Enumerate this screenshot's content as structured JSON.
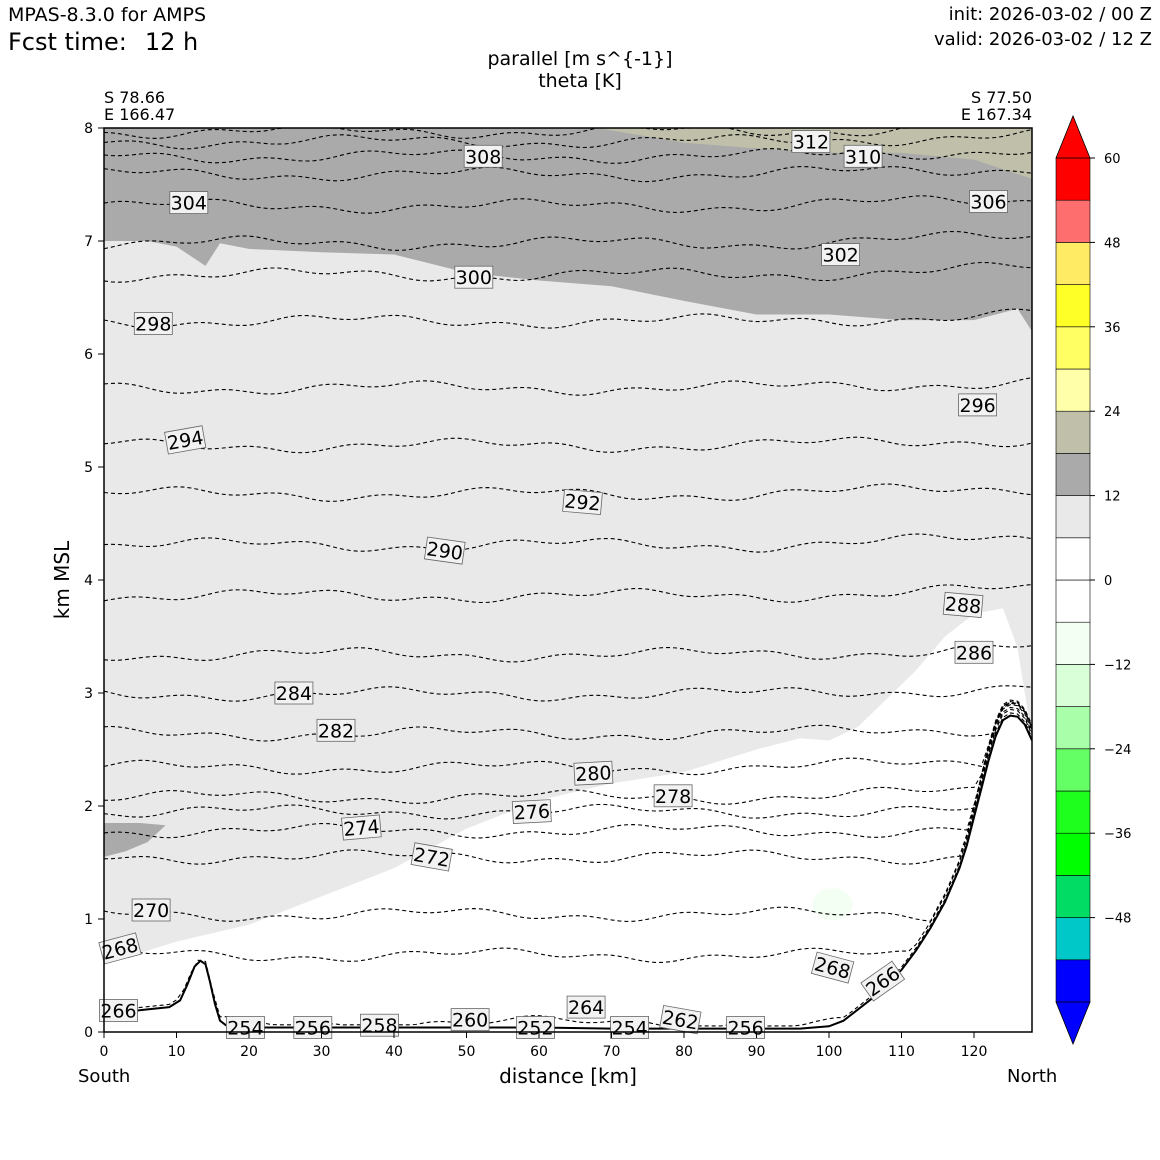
{
  "header": {
    "model": "MPAS-8.3.0 for AMPS",
    "fcst_label": "Fcst time:",
    "fcst_value": "12 h",
    "init": "init: 2026-03-02 / 00 Z",
    "valid": "valid: 2026-03-02 / 12 Z"
  },
  "endpoints": {
    "left_lat": "S 78.66",
    "left_lon": "E 166.47",
    "right_lat": "S 77.50",
    "right_lon": "E 167.34"
  },
  "directions": {
    "left": "South",
    "right": "North"
  },
  "colors": {
    "contour": "#000000",
    "terrain_line": "#000000",
    "fill_band_light": "#e9e9e9",
    "fill_band_mid": "#aaaaaa",
    "fill_band_tan": "#bfbfaa",
    "fill_neg_pale": "#f3fff3"
  },
  "chart_data": {
    "type": "cross-section",
    "title": "parallel [m s^{-1}]",
    "subtitle": "theta [K]",
    "xlabel": "distance [km]",
    "ylabel": "km MSL",
    "xlim": [
      0,
      128
    ],
    "ylim": [
      0,
      8
    ],
    "xticks": [
      0,
      10,
      20,
      30,
      40,
      50,
      60,
      70,
      80,
      90,
      100,
      110,
      120
    ],
    "yticks": [
      0,
      1,
      2,
      3,
      4,
      5,
      6,
      7,
      8
    ],
    "terrain": {
      "x": [
        0,
        3,
        6,
        9,
        10.5,
        11.5,
        12.5,
        13.3,
        14,
        14.6,
        15.3,
        16,
        17,
        18,
        20,
        30,
        40,
        50,
        60,
        70,
        80,
        90,
        96,
        100,
        102,
        104,
        106,
        108,
        110,
        112,
        114,
        116,
        118,
        119,
        120,
        121,
        122,
        123,
        124,
        125,
        126,
        127,
        128
      ],
      "y": [
        0.15,
        0.18,
        0.2,
        0.22,
        0.28,
        0.42,
        0.58,
        0.63,
        0.6,
        0.45,
        0.25,
        0.1,
        0.05,
        0.04,
        0.04,
        0.04,
        0.04,
        0.04,
        0.04,
        0.03,
        0.03,
        0.03,
        0.03,
        0.05,
        0.1,
        0.2,
        0.3,
        0.42,
        0.55,
        0.72,
        0.92,
        1.15,
        1.45,
        1.65,
        1.9,
        2.15,
        2.4,
        2.62,
        2.76,
        2.8,
        2.79,
        2.72,
        2.58
      ]
    },
    "theta_contours": [
      {
        "level": 266,
        "y0": 0.08,
        "x_start": 0
      },
      {
        "level": 268,
        "y0": 0.68,
        "x_start": 0
      },
      {
        "level": 270,
        "y0": 1.04,
        "x_start": 0
      },
      {
        "level": 272,
        "y0": 1.55,
        "x_start": 0
      },
      {
        "level": 274,
        "y0": 1.78,
        "x_start": 0
      },
      {
        "level": 276,
        "y0": 1.95,
        "x_start": 0
      },
      {
        "level": 278,
        "y0": 2.08,
        "x_start": 0
      },
      {
        "level": 280,
        "y0": 2.34,
        "x_start": 0
      },
      {
        "level": 282,
        "y0": 2.64,
        "x_start": 0
      },
      {
        "level": 284,
        "y0": 2.99,
        "x_start": 0
      },
      {
        "level": 286,
        "y0": 3.34,
        "x_start": 0
      },
      {
        "level": 288,
        "y0": 3.86,
        "x_start": 0
      },
      {
        "level": 290,
        "y0": 4.31,
        "x_start": 0
      },
      {
        "level": 292,
        "y0": 4.76,
        "x_start": 0
      },
      {
        "level": 294,
        "y0": 5.19,
        "x_start": 0
      },
      {
        "level": 296,
        "y0": 5.7,
        "x_start": 0
      },
      {
        "level": 298,
        "y0": 6.29,
        "x_start": 0
      },
      {
        "level": 300,
        "y0": 6.7,
        "x_start": 0
      },
      {
        "level": 302,
        "y0": 6.98,
        "x_start": 0
      },
      {
        "level": 304,
        "y0": 7.31,
        "x_start": 0
      },
      {
        "level": 306,
        "y0": 7.59,
        "x_start": 0
      },
      {
        "level": 308,
        "y0": 7.75,
        "x_start": 0
      },
      {
        "level": 310,
        "y0": 7.88,
        "x_start": 0
      },
      {
        "level": 312,
        "y0": 7.97,
        "x_start": 0
      }
    ],
    "contour_labels": [
      {
        "text": "312",
        "x": 97.5,
        "y": 7.88,
        "rot": 0
      },
      {
        "text": "308",
        "x": 52.3,
        "y": 7.75,
        "rot": 0
      },
      {
        "text": "310",
        "x": 104.7,
        "y": 7.75,
        "rot": 0
      },
      {
        "text": "304",
        "x": 11.7,
        "y": 7.34,
        "rot": 0
      },
      {
        "text": "306",
        "x": 122.0,
        "y": 7.35,
        "rot": 0
      },
      {
        "text": "302",
        "x": 101.6,
        "y": 6.88,
        "rot": 0
      },
      {
        "text": "300",
        "x": 51.0,
        "y": 6.68,
        "rot": 0
      },
      {
        "text": "298",
        "x": 6.8,
        "y": 6.27,
        "rot": 0
      },
      {
        "text": "296",
        "x": 120.5,
        "y": 5.55,
        "rot": 0
      },
      {
        "text": "294",
        "x": 11.2,
        "y": 5.24,
        "rot": -10
      },
      {
        "text": "292",
        "x": 66.0,
        "y": 4.69,
        "rot": 5
      },
      {
        "text": "290",
        "x": 47.0,
        "y": 4.26,
        "rot": 8
      },
      {
        "text": "288",
        "x": 118.5,
        "y": 3.78,
        "rot": 5
      },
      {
        "text": "286",
        "x": 120.0,
        "y": 3.36,
        "rot": 0
      },
      {
        "text": "284",
        "x": 26.2,
        "y": 3.0,
        "rot": 0
      },
      {
        "text": "282",
        "x": 32.0,
        "y": 2.67,
        "rot": 0
      },
      {
        "text": "280",
        "x": 67.5,
        "y": 2.29,
        "rot": -3
      },
      {
        "text": "278",
        "x": 78.5,
        "y": 2.09,
        "rot": 0
      },
      {
        "text": "276",
        "x": 59.0,
        "y": 1.95,
        "rot": -3
      },
      {
        "text": "274",
        "x": 35.5,
        "y": 1.81,
        "rot": -5
      },
      {
        "text": "272",
        "x": 45.2,
        "y": 1.55,
        "rot": 10
      },
      {
        "text": "270",
        "x": 6.5,
        "y": 1.08,
        "rot": 0
      },
      {
        "text": "268",
        "x": 2.2,
        "y": 0.74,
        "rot": -15
      },
      {
        "text": "268",
        "x": 100.5,
        "y": 0.57,
        "rot": 15
      },
      {
        "text": "266",
        "x": 107.4,
        "y": 0.45,
        "rot": -35
      },
      {
        "text": "266",
        "x": 2.0,
        "y": 0.19,
        "rot": 0
      },
      {
        "text": "264",
        "x": 66.5,
        "y": 0.22,
        "rot": 0
      },
      {
        "text": "262",
        "x": 79.5,
        "y": 0.11,
        "rot": 10
      },
      {
        "text": "260",
        "x": 50.5,
        "y": 0.11,
        "rot": 0
      },
      {
        "text": "258",
        "x": 38.0,
        "y": 0.06,
        "rot": 0
      },
      {
        "text": "256",
        "x": 28.8,
        "y": 0.04,
        "rot": 0
      },
      {
        "text": "256",
        "x": 88.5,
        "y": 0.04,
        "rot": 0
      },
      {
        "text": "254",
        "x": 19.5,
        "y": 0.04,
        "rot": 0
      },
      {
        "text": "254",
        "x": 72.5,
        "y": 0.04,
        "rot": 0
      },
      {
        "text": "252",
        "x": 59.5,
        "y": 0.04,
        "rot": 0
      }
    ],
    "wind_fill": {
      "levels": [
        -60,
        -54,
        -48,
        -42,
        -36,
        -30,
        -24,
        -18,
        -12,
        -6,
        0,
        6,
        12,
        18,
        24,
        30,
        36,
        42,
        48,
        54,
        60
      ],
      "colors": [
        "#0000ff",
        "#00c8c8",
        "#00dc64",
        "#00ff00",
        "#1eff1e",
        "#64ff64",
        "#a9ffa9",
        "#d8ffd8",
        "#f3fff3",
        "#ffffff",
        "#ffffff",
        "#e9e9e9",
        "#aaaaaa",
        "#bfbfaa",
        "#ffffaa",
        "#ffff64",
        "#ffff28",
        "#ffeb64",
        "#ff6e6e",
        "#ff0000"
      ],
      "colorbar_ticks": [
        60,
        48,
        36,
        24,
        12,
        0,
        -12,
        -24,
        -36,
        -48
      ],
      "colorbar_tick_labels": [
        "60",
        "48",
        "36",
        "24",
        "12",
        "0",
        "−12",
        "−24",
        "−36",
        "−48"
      ],
      "regions": [
        {
          "level_band": "6-12",
          "boundary_x": [
            0,
            10,
            20,
            30,
            40,
            50,
            60,
            70,
            80,
            90,
            96,
            100,
            104,
            108,
            112,
            116,
            120,
            124,
            126,
            127,
            128
          ],
          "boundary_y": [
            0.6,
            0.8,
            0.95,
            1.2,
            1.45,
            1.8,
            2.05,
            2.2,
            2.3,
            2.5,
            2.6,
            2.58,
            2.7,
            2.95,
            3.2,
            3.5,
            3.7,
            3.75,
            3.4,
            3.0,
            2.58
          ]
        },
        {
          "level_band": "12-18",
          "boundary_x": [
            0,
            6,
            10,
            14,
            16,
            20,
            30,
            40,
            50,
            60,
            70,
            80,
            90,
            100,
            110,
            120,
            126,
            128
          ],
          "boundary_y": [
            7.0,
            7.0,
            6.95,
            6.78,
            6.98,
            6.93,
            6.9,
            6.88,
            6.72,
            6.65,
            6.6,
            6.47,
            6.35,
            6.35,
            6.3,
            6.3,
            6.4,
            6.2
          ]
        },
        {
          "level_band": "18-24",
          "boundary_x": [
            68,
            80,
            90,
            100,
            110,
            120,
            128
          ],
          "boundary_y": [
            8.0,
            7.87,
            7.82,
            7.78,
            7.78,
            7.72,
            7.55
          ]
        }
      ]
    }
  }
}
